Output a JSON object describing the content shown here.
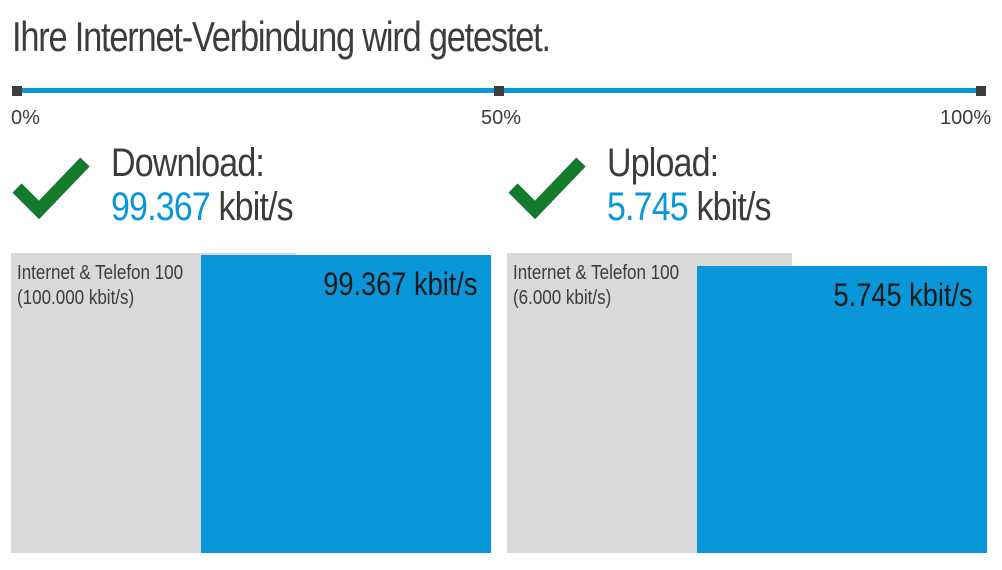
{
  "page": {
    "title": "Ihre Internet-Verbindung wird getestet."
  },
  "progress": {
    "value_percent": 100,
    "labels": [
      "0%",
      "50%",
      "100%"
    ],
    "track_color": "#0a97d9",
    "marker_color": "#3c3c3c"
  },
  "download": {
    "label": "Download:",
    "value": "99.367",
    "unit": "kbit/s",
    "status_icon": "check-icon",
    "status_color": "#157a2e",
    "tariff_name": "Internet & Telefon 100",
    "tariff_speed": "(100.000 kbit/s)",
    "measured_label": "99.367 kbit/s",
    "tariff_kbit": 100000,
    "measured_kbit": 99367
  },
  "upload": {
    "label": "Upload:",
    "value": "5.745",
    "unit": "kbit/s",
    "status_icon": "check-icon",
    "status_color": "#157a2e",
    "tariff_name": "Internet & Telefon 100",
    "tariff_speed": "(6.000 kbit/s)",
    "measured_label": "5.745 kbit/s",
    "tariff_kbit": 6000,
    "measured_kbit": 5745
  },
  "colors": {
    "accent": "#0a97d9",
    "tariff_bar": "#d9d9d9",
    "text": "#3c3c3c",
    "check": "#157a2e"
  }
}
